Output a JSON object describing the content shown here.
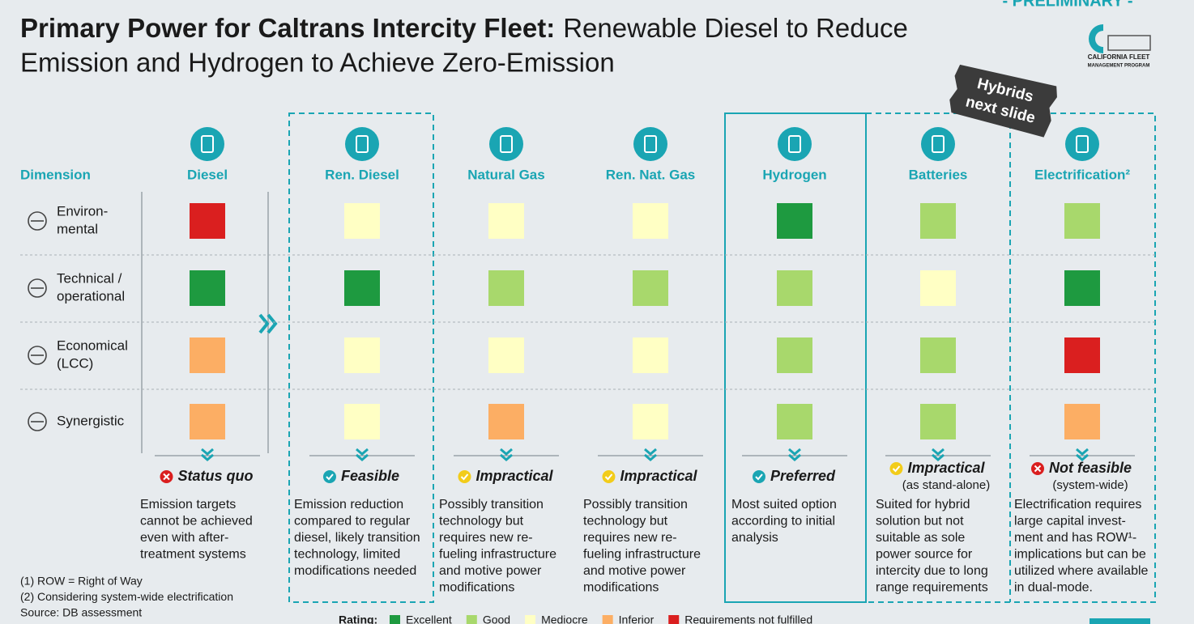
{
  "header": {
    "badge": "- PRELIMINARY -",
    "title_bold": "Primary Power for Caltrans Intercity Fleet:",
    "title_lines": [
      "Renewable Diesel to Reduce",
      "Emission and Hydrogen to Achieve Zero-Emission"
    ],
    "logo_lines": [
      "CALIFORNIA FLEET",
      "MANAGEMENT PROGRAM"
    ],
    "sticker_lines": [
      "Hybrids",
      "next slide"
    ]
  },
  "dimension_header": "Dimension",
  "dimensions": [
    [
      "Environ-",
      "mental"
    ],
    [
      "Technical /",
      "operational"
    ],
    [
      "Economical",
      "(LCC)"
    ],
    [
      "Synergistic"
    ]
  ],
  "options": [
    {
      "name": "Diesel",
      "ratings": [
        "#da1f1f",
        "#1e9a40",
        "#fcae64",
        "#fcae64"
      ],
      "verdict": "Status quo",
      "verdict_color": "#da1f1f",
      "description": [
        "Emission targets",
        "cannot be achieved",
        "even with after-",
        "treatment systems"
      ]
    },
    {
      "name": "Ren. Diesel",
      "ratings": [
        "#ffffc4",
        "#1e9a40",
        "#ffffc4",
        "#ffffc4"
      ],
      "verdict": "Feasible",
      "verdict_color": "#1aa5b3",
      "description": [
        "Emission reduction",
        "compared to regular",
        "diesel, likely transition",
        "technology, limited",
        "modifications needed"
      ]
    },
    {
      "name": "Natural Gas",
      "ratings": [
        "#ffffc4",
        "#a8d86c",
        "#ffffc4",
        "#fcae64"
      ],
      "verdict": "Impractical",
      "verdict_color": "#f2cc1a",
      "description": [
        "Possibly transition",
        "technology but",
        "requires new re-",
        "fueling infrastructure",
        "and  motive power",
        "modifications"
      ]
    },
    {
      "name": "Ren. Nat. Gas",
      "ratings": [
        "#ffffc4",
        "#a8d86c",
        "#ffffc4",
        "#ffffc4"
      ],
      "verdict": "Impractical",
      "verdict_color": "#f2cc1a",
      "description": [
        "Possibly transition",
        "technology but",
        "requires new re-",
        "fueling infrastructure",
        "and  motive power",
        "modifications"
      ]
    },
    {
      "name": "Hydrogen",
      "ratings": [
        "#1e9a40",
        "#a8d86c",
        "#a8d86c",
        "#a8d86c"
      ],
      "verdict": "Preferred",
      "verdict_color": "#1aa5b3",
      "description": [
        "Most suited option",
        "according to initial",
        "analysis"
      ]
    },
    {
      "name": "Batteries",
      "ratings": [
        "#a8d86c",
        "#ffffc4",
        "#a8d86c",
        "#a8d86c"
      ],
      "verdict": "Impractical",
      "verdict_note": "(as stand-alone)",
      "verdict_color": "#f2cc1a",
      "description": [
        "Suited for hybrid",
        "solution but not",
        "suitable as sole",
        "power source for",
        "intercity due to long",
        "range requirements"
      ]
    },
    {
      "name": "Electrification²",
      "ratings": [
        "#a8d86c",
        "#1e9a40",
        "#da1f1f",
        "#fcae64"
      ],
      "verdict": "Not feasible",
      "verdict_note": "(system-wide)",
      "verdict_color": "#da1f1f",
      "description": [
        "Electrification requires",
        "large capital invest-",
        "ment and has ROW¹-",
        "implications but can be",
        "utilized where available",
        "in dual-mode."
      ]
    }
  ],
  "footnotes": [
    "(1) ROW = Right of Way",
    "(2) Considering system-wide electrification",
    "Source: DB assessment"
  ],
  "legend": {
    "title": "Rating:",
    "items": [
      {
        "label": "Excellent",
        "color": "#1e9a40"
      },
      {
        "label": "Good",
        "color": "#a8d86c"
      },
      {
        "label": "Mediocre",
        "color": "#ffffc4"
      },
      {
        "label": "Inferior",
        "color": "#fcae64"
      },
      {
        "label": "Requirements not fulfilled",
        "color": "#da1f1f"
      }
    ]
  }
}
